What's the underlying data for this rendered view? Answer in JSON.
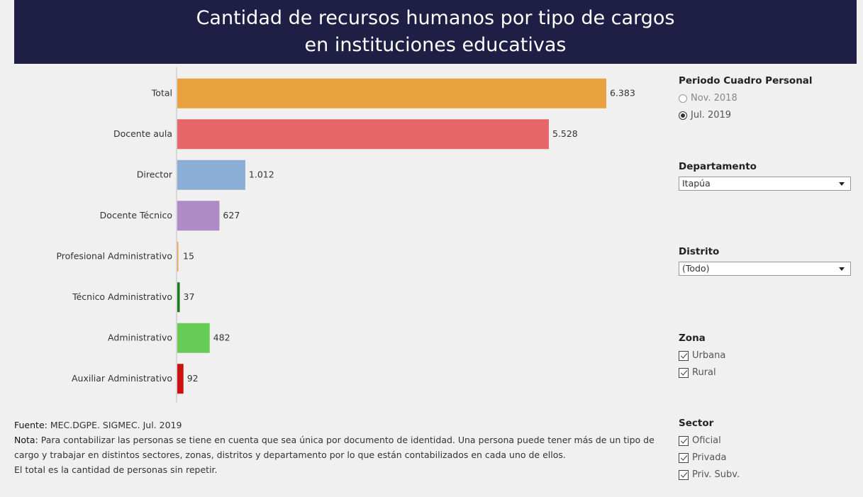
{
  "header": {
    "title_lines": [
      "Cantidad de recursos humanos por tipo de cargos",
      "en instituciones educativas"
    ]
  },
  "chart_data": {
    "type": "bar",
    "orientation": "horizontal",
    "categories": [
      "Total",
      "Docente aula",
      "Director",
      "Docente Técnico",
      "Profesional Administrativo",
      "Técnico Administrativo",
      "Administrativo",
      "Auxiliar Administrativo"
    ],
    "values": [
      6383,
      5528,
      1012,
      627,
      15,
      37,
      482,
      92
    ],
    "value_labels": [
      "6.383",
      "5.528",
      "1.012",
      "627",
      "15",
      "37",
      "482",
      "92"
    ],
    "colors": [
      "#e9a03f",
      "#e66669",
      "#8aaed5",
      "#ae8bc4",
      "#e9a03f",
      "#1b7a1b",
      "#66cc55",
      "#cc1111"
    ]
  },
  "filters": [
    {
      "title": "Periodo Cuadro Personal",
      "kind": "radio",
      "options": [
        {
          "label": "Nov. 2018",
          "checked": false
        },
        {
          "label": "Jul. 2019",
          "checked": true
        }
      ]
    },
    {
      "title": "Departamento",
      "kind": "dropdown",
      "value": "Itapúa"
    },
    {
      "title": "Distrito",
      "kind": "dropdown",
      "value": "(Todo)"
    },
    {
      "title": "Zona",
      "kind": "checkbox",
      "options": [
        {
          "label": "Urbana",
          "checked": true
        },
        {
          "label": "Rural",
          "checked": true
        }
      ]
    },
    {
      "title": "Sector",
      "kind": "checkbox",
      "options": [
        {
          "label": "Oficial",
          "checked": true
        },
        {
          "label": "Privada",
          "checked": true
        },
        {
          "label": "Priv. Subv.",
          "checked": true
        }
      ]
    }
  ],
  "footer": {
    "source_label": "Fuente:",
    "source": "MEC.DGPE. SIGMEC. Jul. 2019",
    "note_label": "Nota:",
    "note": "Para contabilizar las personas se tiene en cuenta que sea única por documento de identidad. Una persona puede tener más de un tipo de cargo y trabajar en distintos sectores, zonas, distritos y departamento por lo que están contabilizados en cada uno de ellos.",
    "total_note": "El total es la cantidad de personas sin repetir."
  }
}
